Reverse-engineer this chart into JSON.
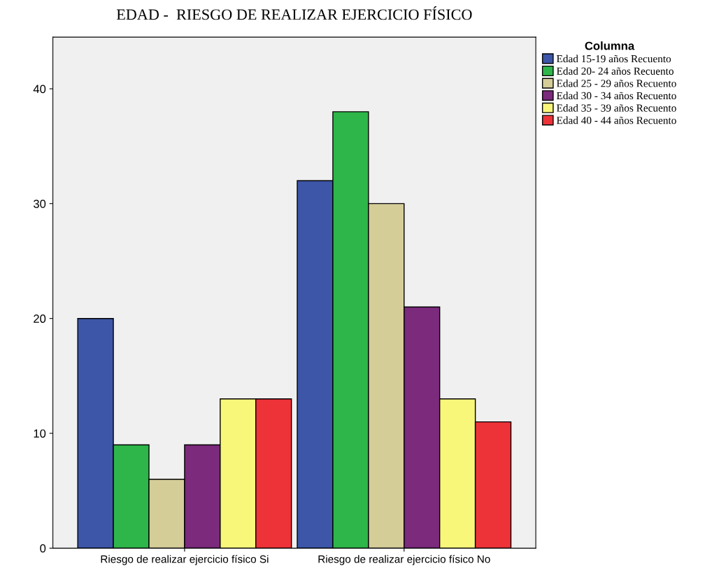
{
  "chart_data": {
    "type": "bar",
    "title": "EDAD -  RIESGO DE REALIZAR EJERCICIO FÍSICO",
    "categories": [
      "Riesgo de realizar ejercicio físico Si",
      "Riesgo de realizar ejercicio físico No"
    ],
    "legend_title": "Columna",
    "legend": "top right",
    "grid": false,
    "ylim": [
      0,
      44.5
    ],
    "yticks": [
      0,
      10,
      20,
      30,
      40
    ],
    "series": [
      {
        "name": "Edad 15-19 años Recuento",
        "color": "#3d56a8",
        "values": [
          20,
          32
        ]
      },
      {
        "name": "Edad 20- 24 años Recuento",
        "color": "#2eb64a",
        "values": [
          9,
          38
        ]
      },
      {
        "name": "Edad 25 - 29 años Recuento",
        "color": "#d5cd98",
        "values": [
          6,
          30
        ]
      },
      {
        "name": "Edad 30 - 34 años Recuento",
        "color": "#7b2a7c",
        "values": [
          9,
          21
        ]
      },
      {
        "name": "Edad 35 - 39 años Recuento",
        "color": "#f9f77a",
        "values": [
          13,
          13
        ]
      },
      {
        "name": "Edad 40 - 44 años Recuento",
        "color": "#ee3338",
        "values": [
          13,
          11
        ]
      }
    ]
  }
}
